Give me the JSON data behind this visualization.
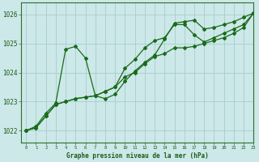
{
  "title": "Graphe pression niveau de la mer (hPa)",
  "background_color": "#cce8e8",
  "grid_color": "#aacccc",
  "line_color": "#1a6b1a",
  "xlim": [
    -0.5,
    23
  ],
  "ylim": [
    1021.6,
    1026.4
  ],
  "yticks": [
    1022,
    1023,
    1024,
    1025,
    1026
  ],
  "xticks": [
    0,
    1,
    2,
    3,
    4,
    5,
    6,
    7,
    8,
    9,
    10,
    11,
    12,
    13,
    14,
    15,
    16,
    17,
    18,
    19,
    20,
    21,
    22,
    23
  ],
  "hours": [
    0,
    1,
    2,
    3,
    4,
    5,
    6,
    7,
    8,
    9,
    10,
    11,
    12,
    13,
    14,
    15,
    16,
    17,
    18,
    19,
    20,
    21,
    22,
    23
  ],
  "series": [
    [
      1022.0,
      1022.1,
      1022.5,
      1022.9,
      1023.0,
      1023.1,
      1023.15,
      1023.2,
      1023.35,
      1023.5,
      1023.85,
      1024.0,
      1024.3,
      1024.55,
      1024.65,
      1024.85,
      1024.85,
      1024.9,
      1025.0,
      1025.1,
      1025.2,
      1025.35,
      1025.55,
      1026.05
    ],
    [
      1022.0,
      1022.15,
      1022.6,
      1022.95,
      1024.8,
      1024.9,
      1024.5,
      1023.2,
      1023.1,
      1023.25,
      1023.7,
      1024.05,
      1024.35,
      1024.6,
      1025.15,
      1025.7,
      1025.75,
      1025.8,
      1025.5,
      1025.55,
      1025.65,
      1025.75,
      1025.9,
      1026.05
    ],
    [
      1022.0,
      1022.1,
      1022.5,
      1022.9,
      1023.0,
      1023.1,
      1023.15,
      1023.2,
      1023.35,
      1023.5,
      1024.15,
      1024.45,
      1024.85,
      1025.1,
      1025.2,
      1025.65,
      1025.65,
      1025.3,
      1025.05,
      1025.2,
      1025.35,
      1025.5,
      1025.65,
      1026.05
    ]
  ]
}
